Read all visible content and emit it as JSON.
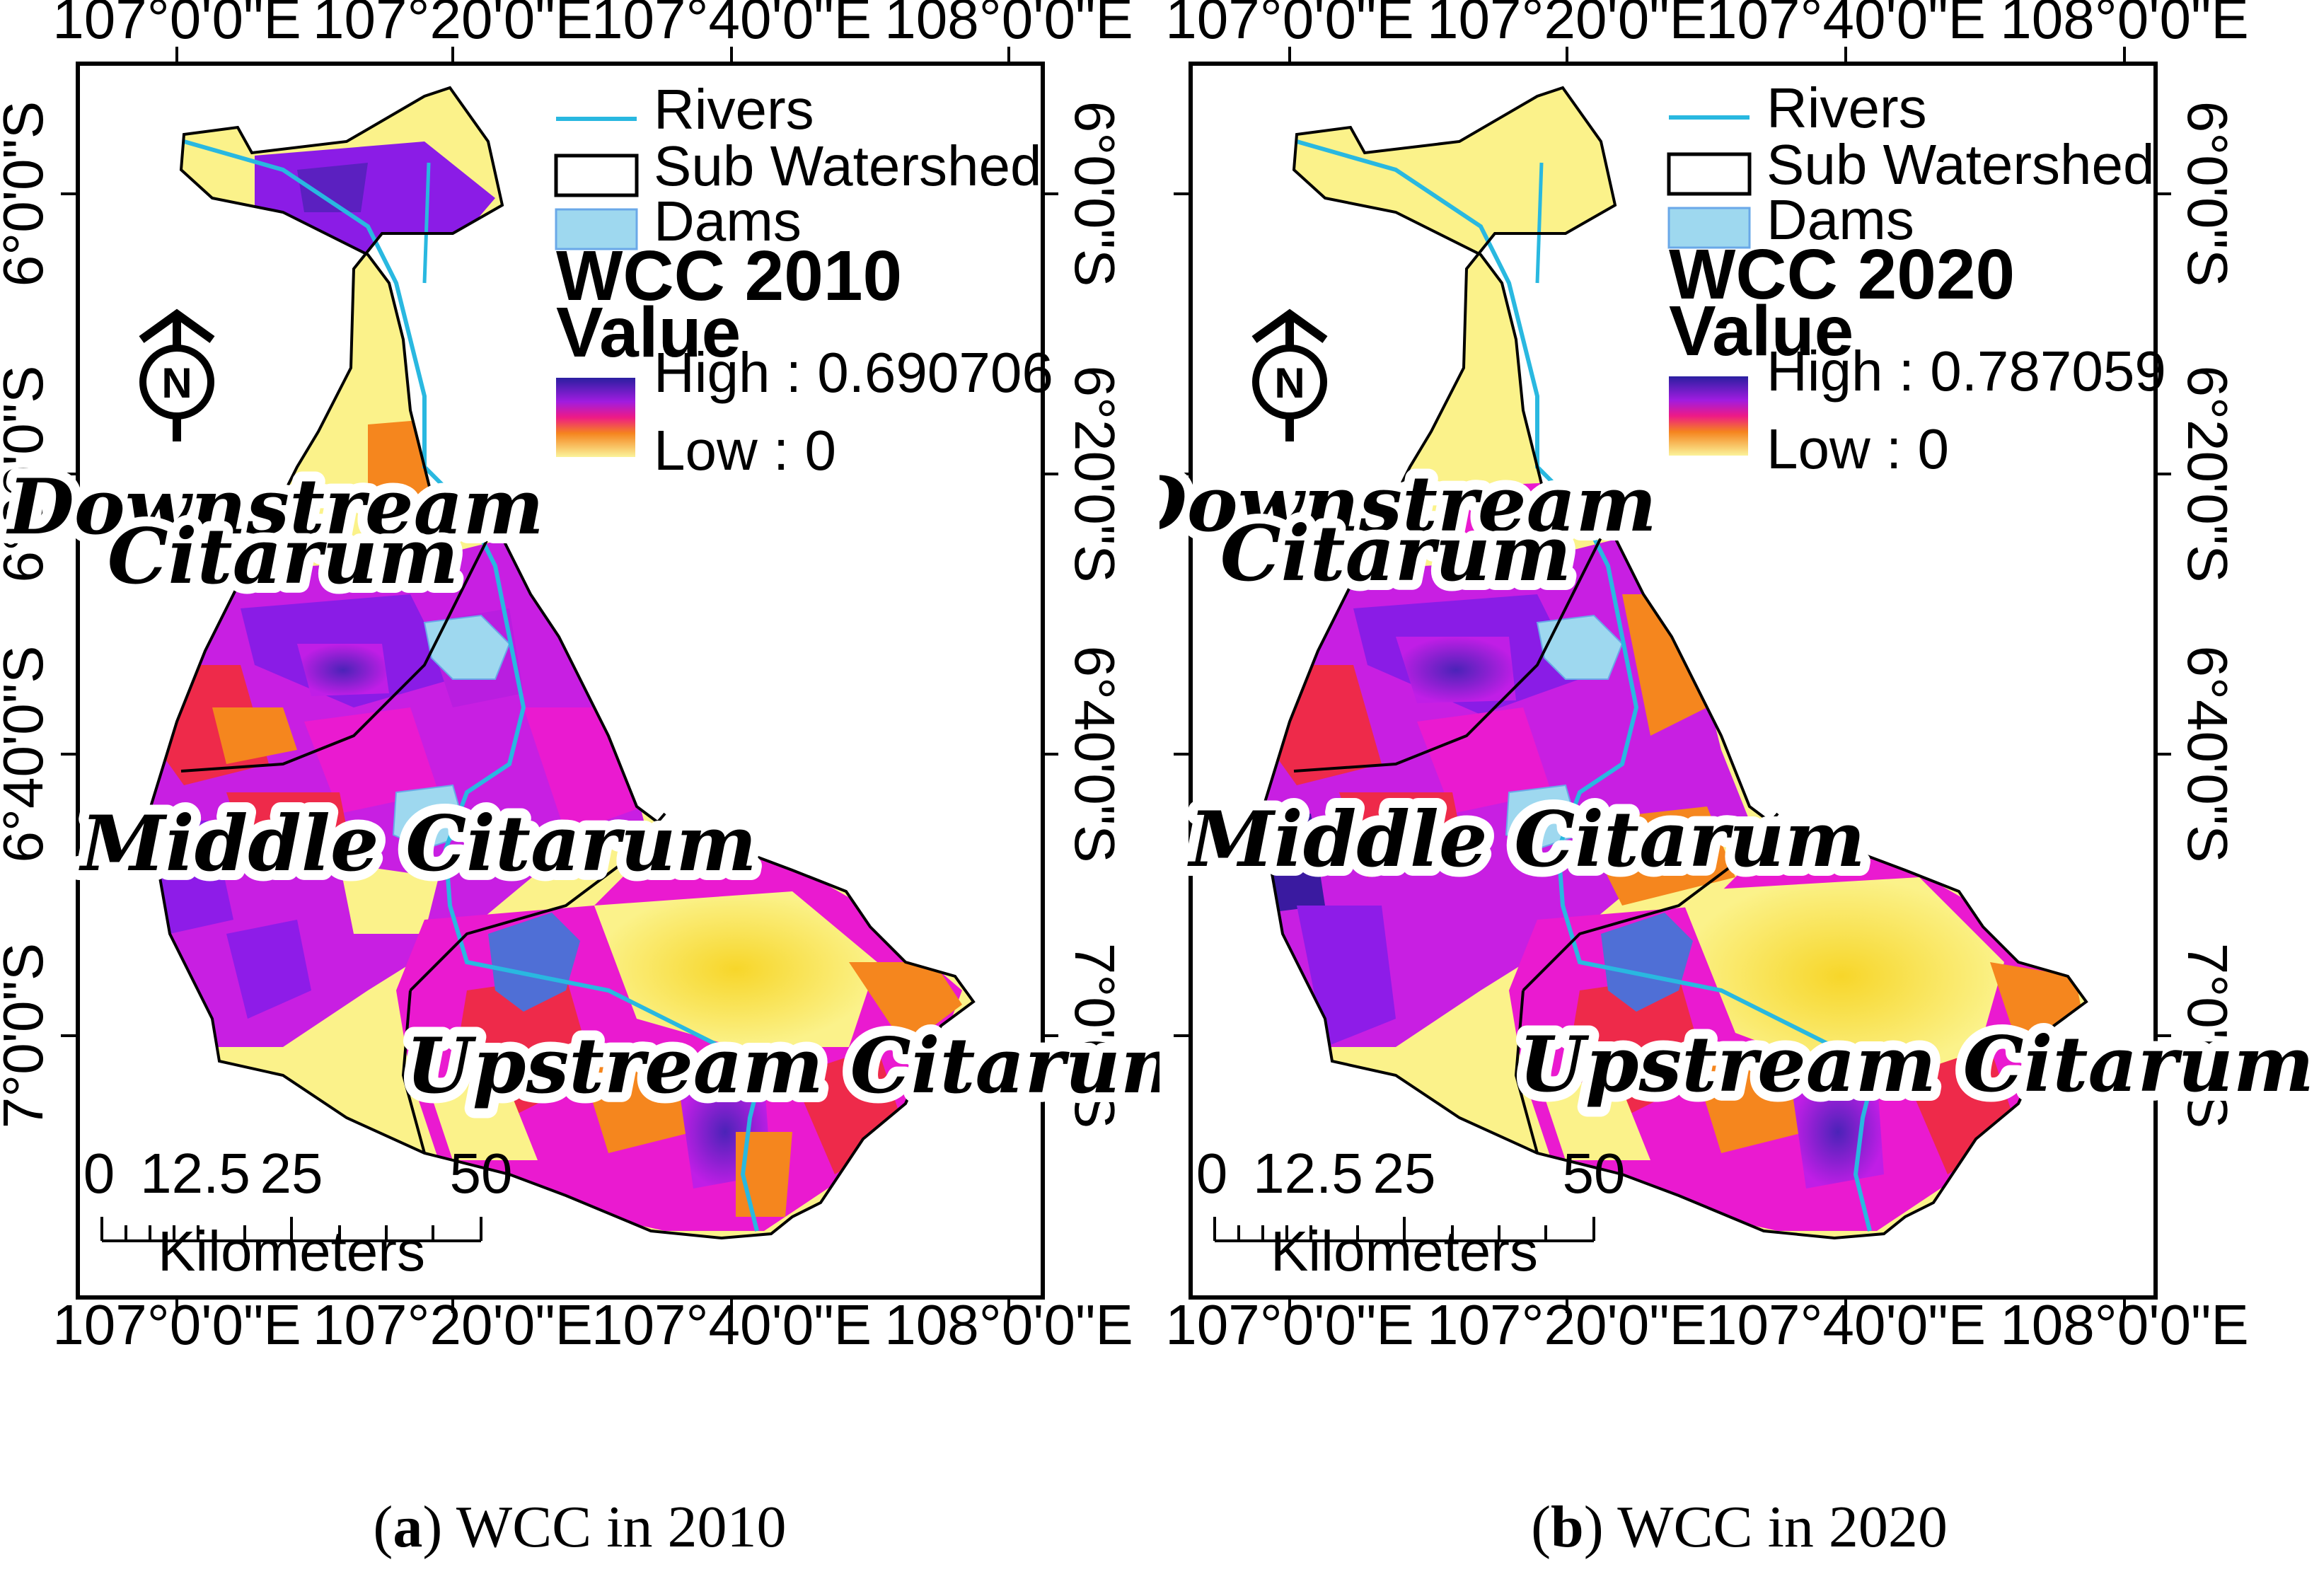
{
  "maps": [
    {
      "id": "a",
      "title": "WCC 2010",
      "value_heading": "Value",
      "high_label": "High : 0.690706",
      "low_label": "Low : 0",
      "caption_letter": "a",
      "caption_text": " WCC in 2010"
    },
    {
      "id": "b",
      "title": "WCC 2020",
      "value_heading": "Value",
      "high_label": "High : 0.787059",
      "low_label": "Low : 0",
      "caption_letter": "b",
      "caption_text": " WCC in 2020"
    }
  ],
  "legend": {
    "rivers": "Rivers",
    "sub_watershed": "Sub Watershed",
    "dams": "Dams"
  },
  "axes": {
    "longitudes": [
      "107°0'0\"E",
      "107°20'0\"E",
      "107°40'0\"E",
      "108°0'0\"E"
    ],
    "latitudes": [
      "6°0'0\"S",
      "6°20'0\"S",
      "6°40'0\"S",
      "7°0'0\"S"
    ]
  },
  "regions": {
    "downstream_line1": "Downstream",
    "downstream_line2": "Citarum",
    "middle": "Middle Citarum",
    "upstream": "Upstream Citarum"
  },
  "scalebar": {
    "ticks": [
      "0",
      "12.5",
      "25",
      "50"
    ],
    "unit": "Kilometers"
  },
  "north_arrow_letter": "N",
  "colors": {
    "river": "#29b8e0",
    "dam": "#9ed8ef",
    "reservoir": "#4f6fd6",
    "yellow": "#fbf28a",
    "orange": "#f58a1c",
    "red": "#ee2a4a",
    "magenta": "#ea1ad0",
    "purple": "#8e1ce8",
    "indigo": "#3a1aa0"
  }
}
